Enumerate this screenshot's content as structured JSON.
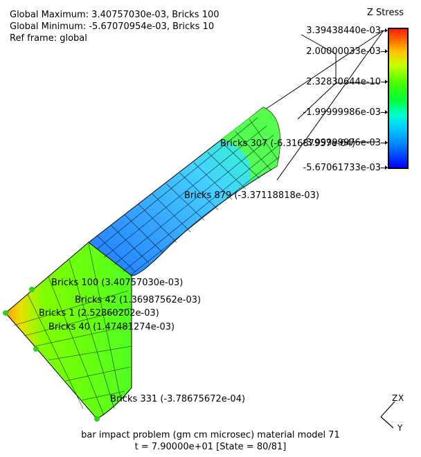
{
  "header": {
    "global_max": "Global Maximum: 3.40757030e-03, Bricks 100",
    "global_min": "Global Minimum: -5.67070954e-03, Bricks 10",
    "ref_frame": "Ref frame: global"
  },
  "legend": {
    "title": "Z Stress",
    "labels": [
      "3.39438440e-03",
      "2.00000033e-03",
      "2.32830644e-10",
      "-1.99999986e-03",
      "-3.99999976e-03",
      "-5.67061733e-03"
    ]
  },
  "annotations": {
    "b307": "Bricks 307 (-6.31687957e-04)",
    "b879": "Bricks 879 (-3.37118818e-03)",
    "b100": "Bricks 100 (3.40757030e-03)",
    "b42": "Bricks 42 (1.36987562e-03)",
    "b1": "Bricks 1 (2.52860202e-03)",
    "b40": "Bricks 40 (1.47481274e-03)",
    "b331": "Bricks 331 (-3.78675672e-04)"
  },
  "axes": {
    "z": "Z",
    "x": "X",
    "y": "Y"
  },
  "footer": {
    "title": "bar impact problem (gm cm microsec) material model 71",
    "state": "t = 7.90000e+01 [State = 80/81]"
  },
  "colors": {
    "max": "#ff2000",
    "mid": "#40ff00",
    "min": "#0000ff"
  }
}
